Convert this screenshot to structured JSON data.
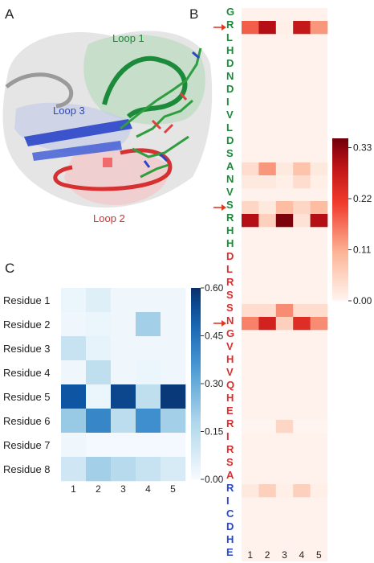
{
  "panels": {
    "a": "A",
    "b": "B",
    "c": "C"
  },
  "structure": {
    "loop1": "Loop 1",
    "loop2": "Loop 2",
    "loop3": "Loop 3",
    "colors": {
      "loop1": "#1b8a3a",
      "loop2": "#d63030",
      "loop3": "#2a46c8"
    }
  },
  "sequence": [
    {
      "aa": "G",
      "color": "#1b8a3a"
    },
    {
      "aa": "R",
      "color": "#1b8a3a"
    },
    {
      "aa": "L",
      "color": "#1b8a3a"
    },
    {
      "aa": "H",
      "color": "#1b8a3a"
    },
    {
      "aa": "D",
      "color": "#1b8a3a"
    },
    {
      "aa": "N",
      "color": "#1b8a3a"
    },
    {
      "aa": "D",
      "color": "#1b8a3a"
    },
    {
      "aa": "I",
      "color": "#1b8a3a"
    },
    {
      "aa": "V",
      "color": "#1b8a3a"
    },
    {
      "aa": "L",
      "color": "#1b8a3a"
    },
    {
      "aa": "D",
      "color": "#1b8a3a"
    },
    {
      "aa": "S",
      "color": "#1b8a3a"
    },
    {
      "aa": "A",
      "color": "#1b8a3a"
    },
    {
      "aa": "N",
      "color": "#1b8a3a"
    },
    {
      "aa": "V",
      "color": "#1b8a3a"
    },
    {
      "aa": "S",
      "color": "#1b8a3a"
    },
    {
      "aa": "R",
      "color": "#1b8a3a"
    },
    {
      "aa": "H",
      "color": "#1b8a3a"
    },
    {
      "aa": "H",
      "color": "#1b8a3a"
    },
    {
      "aa": "D",
      "color": "#d63030"
    },
    {
      "aa": "L",
      "color": "#d63030"
    },
    {
      "aa": "R",
      "color": "#d63030"
    },
    {
      "aa": "S",
      "color": "#d63030"
    },
    {
      "aa": "S",
      "color": "#d63030"
    },
    {
      "aa": "N",
      "color": "#d63030"
    },
    {
      "aa": "G",
      "color": "#d63030"
    },
    {
      "aa": "V",
      "color": "#d63030"
    },
    {
      "aa": "H",
      "color": "#d63030"
    },
    {
      "aa": "V",
      "color": "#d63030"
    },
    {
      "aa": "Q",
      "color": "#d63030"
    },
    {
      "aa": "H",
      "color": "#d63030"
    },
    {
      "aa": "E",
      "color": "#d63030"
    },
    {
      "aa": "R",
      "color": "#d63030"
    },
    {
      "aa": "I",
      "color": "#d63030"
    },
    {
      "aa": "R",
      "color": "#d63030"
    },
    {
      "aa": "S",
      "color": "#d63030"
    },
    {
      "aa": "A",
      "color": "#d63030"
    },
    {
      "aa": "R",
      "color": "#2a46c8"
    },
    {
      "aa": "I",
      "color": "#2a46c8"
    },
    {
      "aa": "C",
      "color": "#2a46c8"
    },
    {
      "aa": "D",
      "color": "#2a46c8"
    },
    {
      "aa": "H",
      "color": "#2a46c8"
    },
    {
      "aa": "E",
      "color": "#2a46c8"
    }
  ],
  "arrows": {
    "rows": [
      1,
      15,
      24
    ],
    "color": "#e03a25"
  },
  "chart_data": [
    {
      "type": "heatmap",
      "panel": "B",
      "x": [
        "1",
        "2",
        "3",
        "4",
        "5"
      ],
      "y_labels_ref": "sequence",
      "colormap": "white-to-dark-red",
      "colorbar": {
        "min": 0.0,
        "max": 0.35,
        "ticks": [
          "0.00",
          "0.11",
          "0.22",
          "0.33"
        ],
        "tick_values": [
          0.0,
          0.11,
          0.22,
          0.33
        ]
      },
      "background_value": 0.005,
      "values": {
        "1": [
          0.18,
          0.3,
          0.01,
          0.28,
          0.13
        ],
        "12": [
          0.04,
          0.13,
          0.02,
          0.08,
          0.02
        ],
        "13": [
          0.02,
          0.02,
          0.01,
          0.04,
          0.01
        ],
        "15": [
          0.05,
          0.02,
          0.09,
          0.05,
          0.09
        ],
        "16": [
          0.3,
          0.06,
          0.34,
          0.03,
          0.3
        ],
        "23": [
          0.04,
          0.04,
          0.14,
          0.04,
          0.04
        ],
        "24": [
          0.15,
          0.26,
          0.06,
          0.24,
          0.14
        ],
        "32": [
          0.0,
          0.0,
          0.05,
          0.0,
          0.0
        ],
        "37": [
          0.02,
          0.06,
          0.01,
          0.06,
          0.01
        ]
      }
    },
    {
      "type": "heatmap",
      "panel": "C",
      "x": [
        "1",
        "2",
        "3",
        "4",
        "5"
      ],
      "y": [
        "Residue 1",
        "Residue 2",
        "Residue 3",
        "Residue 4",
        "Residue 5",
        "Residue 6",
        "Residue 7",
        "Residue 8"
      ],
      "colormap": "white-to-dark-blue",
      "colorbar": {
        "min": 0.0,
        "max": 0.6,
        "ticks": [
          "0.00",
          "0.15",
          "0.30",
          "0.45",
          "0.60"
        ],
        "tick_values": [
          0.0,
          0.15,
          0.3,
          0.45,
          0.6
        ]
      },
      "values": [
        [
          0.03,
          0.06,
          0.02,
          0.02,
          0.02
        ],
        [
          0.02,
          0.03,
          0.02,
          0.2,
          0.02
        ],
        [
          0.12,
          0.04,
          0.02,
          0.02,
          0.02
        ],
        [
          0.02,
          0.14,
          0.02,
          0.03,
          0.02
        ],
        [
          0.52,
          0.03,
          0.55,
          0.14,
          0.58
        ],
        [
          0.22,
          0.4,
          0.15,
          0.38,
          0.2
        ],
        [
          0.02,
          0.01,
          0.01,
          0.01,
          0.01
        ],
        [
          0.1,
          0.2,
          0.16,
          0.12,
          0.08
        ]
      ]
    }
  ]
}
